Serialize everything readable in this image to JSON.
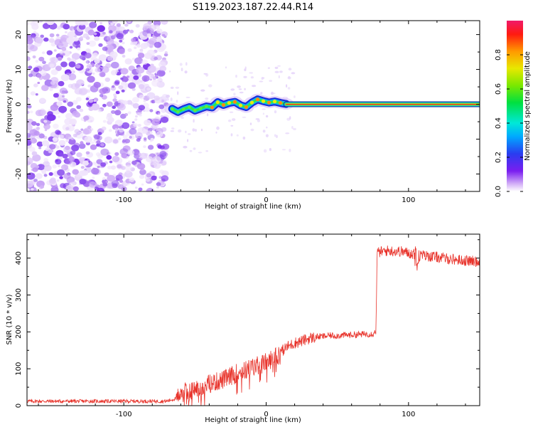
{
  "title": "S119.2023.187.22.44.R14",
  "chart_data": [
    {
      "type": "heatmap",
      "xlabel": "Height of straight line (km)",
      "ylabel": "Frequency (Hz)",
      "xlim": [
        -168,
        150
      ],
      "ylim": [
        -25,
        24
      ],
      "xticks": [
        -100,
        0,
        100
      ],
      "yticks": [
        -20,
        -10,
        0,
        10,
        20
      ],
      "noise_region": {
        "x": [
          -168,
          -70
        ],
        "y": [
          -25,
          24
        ]
      },
      "signal_track": [
        {
          "x": -66,
          "y": -1.3
        },
        {
          "x": -62,
          "y": -2.2
        },
        {
          "x": -58,
          "y": -1.4
        },
        {
          "x": -54,
          "y": -0.8
        },
        {
          "x": -50,
          "y": -1.8
        },
        {
          "x": -46,
          "y": -1.2
        },
        {
          "x": -42,
          "y": -0.6
        },
        {
          "x": -38,
          "y": -0.9
        },
        {
          "x": -34,
          "y": 0.6
        },
        {
          "x": -30,
          "y": -0.2
        },
        {
          "x": -26,
          "y": 0.4
        },
        {
          "x": -22,
          "y": 0.7
        },
        {
          "x": -18,
          "y": -0.3
        },
        {
          "x": -14,
          "y": -0.8
        },
        {
          "x": -10,
          "y": 0.5
        },
        {
          "x": -6,
          "y": 1.4
        },
        {
          "x": -2,
          "y": 0.9
        },
        {
          "x": 2,
          "y": 0.5
        },
        {
          "x": 6,
          "y": 0.8
        },
        {
          "x": 10,
          "y": 0.4
        },
        {
          "x": 14,
          "y": 0.1
        },
        {
          "x": 150,
          "y": 0.0
        }
      ],
      "colorbar": {
        "label": "Normalized spectral amplitude",
        "range": [
          0,
          1
        ],
        "ticks": [
          "0.0",
          "0.2",
          "0.4",
          "0.6",
          "0.8"
        ]
      }
    },
    {
      "type": "line",
      "xlabel": "Height of straight line (km)",
      "ylabel": "SNR (10 * v/v)",
      "xlim": [
        -168,
        150
      ],
      "ylim": [
        0,
        465
      ],
      "xticks": [
        -100,
        0,
        100
      ],
      "yticks": [
        0,
        100,
        200,
        300,
        400
      ],
      "color": "#e8332b",
      "series": [
        {
          "x": [
            -168,
            -120,
            -70,
            -63,
            -60,
            -55,
            -50,
            -45,
            -40,
            -35,
            -30,
            -25,
            -20,
            -15,
            -10,
            -5,
            0,
            5,
            10,
            15,
            20,
            25,
            30,
            35,
            40,
            45,
            50,
            55,
            60,
            65,
            70,
            75,
            77,
            78,
            85,
            95,
            105,
            115,
            125,
            135,
            150
          ],
          "y": [
            12,
            12,
            12,
            20,
            40,
            35,
            45,
            50,
            60,
            65,
            70,
            80,
            90,
            95,
            105,
            110,
            118,
            130,
            145,
            160,
            170,
            175,
            182,
            186,
            188,
            190,
            190,
            191,
            192,
            193,
            194,
            195,
            200,
            415,
            420,
            418,
            410,
            405,
            400,
            395,
            390
          ]
        }
      ]
    }
  ]
}
